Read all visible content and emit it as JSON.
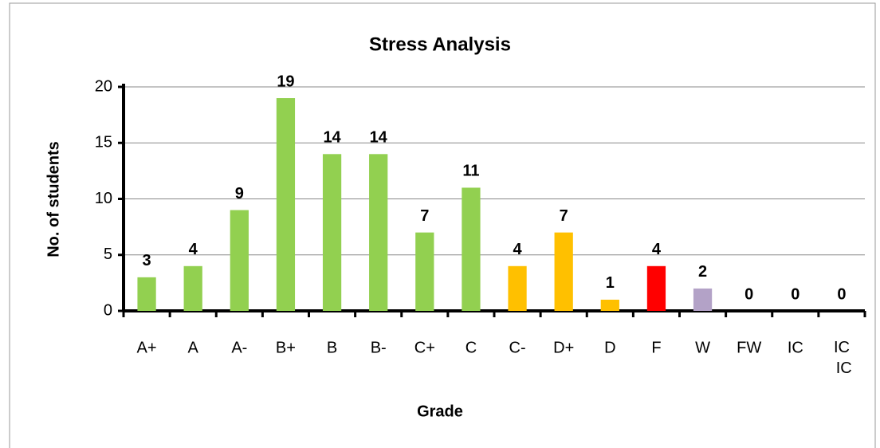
{
  "chart_data": {
    "type": "bar",
    "title": "Stress Analysis",
    "x_label": "Grade",
    "y_label": "No. of students",
    "categories": [
      "A+",
      "A",
      "A-",
      "B+",
      "B",
      "B-",
      "C+",
      "C",
      "C-",
      "D+",
      "D",
      "F",
      "W",
      "FW",
      "IC",
      "IC IC"
    ],
    "values": [
      3,
      4,
      9,
      19,
      14,
      14,
      7,
      11,
      4,
      7,
      1,
      4,
      2,
      0,
      0,
      0
    ],
    "colors": [
      "#92d050",
      "#92d050",
      "#92d050",
      "#92d050",
      "#92d050",
      "#92d050",
      "#92d050",
      "#92d050",
      "#ffc000",
      "#ffc000",
      "#ffc000",
      "#ff0000",
      "#b3a2c7",
      "#b3a2c7",
      "#b3a2c7",
      "#b3a2c7"
    ],
    "ylim": [
      0,
      20
    ],
    "yticks": [
      0,
      5,
      10,
      15,
      20
    ],
    "grid": true
  }
}
